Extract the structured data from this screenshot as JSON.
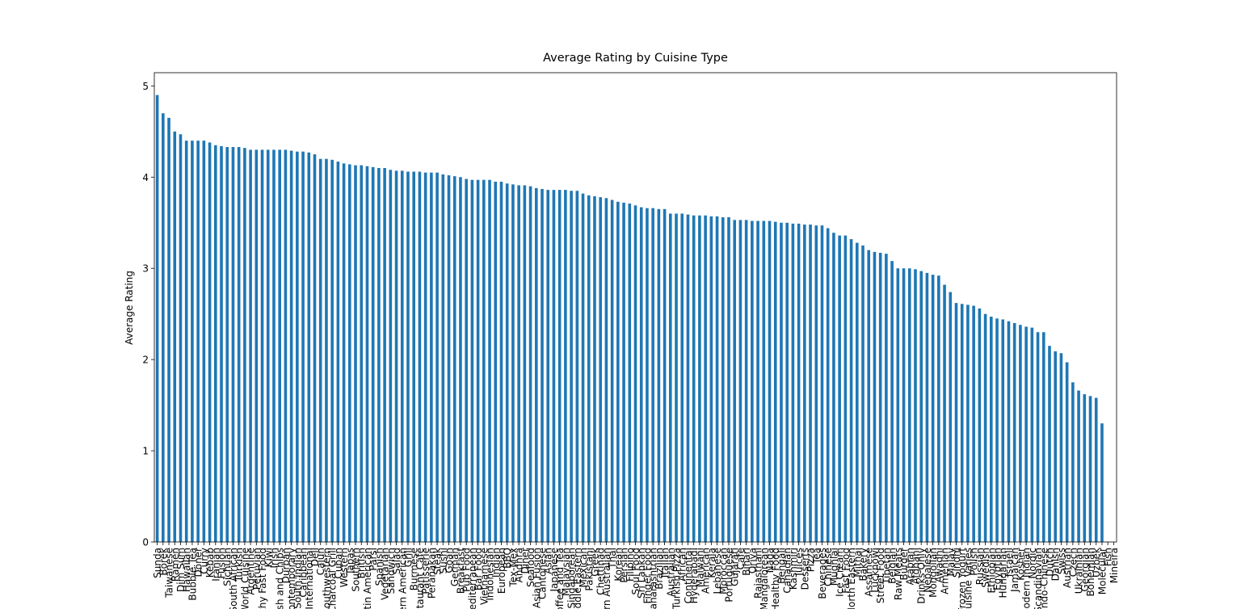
{
  "chart_data": {
    "type": "bar",
    "title": "Average Rating by Cuisine Type",
    "ylabel": "Average Rating",
    "color": "#1f77b4",
    "categories": [
      "Sunda",
      "Börek",
      "Taiwanese",
      "Ramen",
      "Dim Sum",
      "Hawaiian",
      "Bubble Tea",
      "Döner",
      "Curry",
      "Kebab",
      "Iranian",
      "Fusion",
      "Sichuan",
      "South African",
      "Turkish",
      "World Cuisine",
      "Argentine",
      "Peruvian",
      "Healthy Fast Food",
      "Kiwi",
      "Irish",
      "Fish and Chips",
      "Durban",
      "Contemporary",
      "South Indian",
      "Caribbean",
      "International",
      "Deli",
      "Cajun",
      "Southwestern",
      "Charcoal Grill",
      "Cuban",
      "Western",
      "Tapas",
      "Southern",
      "British",
      "Latin American",
      "Parsi",
      "Spanish",
      "Vegetarian",
      "Sandwich",
      "Salad",
      "Modern American",
      "Grill",
      "Burmese",
      "Restaurant Cafe",
      "Patisserie",
      "Peranakan",
      "Steak",
      "Sushi",
      "Goan",
      "German",
      "Breakfast",
      "Pub Food",
      "Mediterranean",
      "Bar Food",
      "Vietnamese",
      "Indonesian",
      "Indian",
      "European",
      "BBQ",
      "Tex-Mex",
      "Andhra",
      "Diner",
      "Seafood",
      "Asian Fusion",
      "Cantonese",
      "Asian",
      "Japanese",
      "Coffee and Tea",
      "Malaysian",
      "Singaporean",
      "Middle Eastern",
      "Mexican",
      "Pakistani",
      "Greek",
      "Chettinad",
      "Modern Australian",
      "Thai",
      "Korean",
      "Persian",
      "Filipino",
      "Soul Food",
      "Sri Lankan",
      "Finger Food",
      "Maharashtrian",
      "Brazilian",
      "Italian",
      "Australian",
      "Turkish Pizza",
      "African",
      "Continental",
      "Hyderabadi",
      "Malwani",
      "American",
      "Kerala",
      "Lebanese",
      "Moroccan",
      "Portuguese",
      "Gujarati",
      "Cafe",
      "Bihari",
      "Oriya",
      "Rajasthani",
      "Mangalorean",
      "Naga",
      "Healthy Food",
      "Bengali",
      "Canadian",
      "Kashmiri",
      "Juices",
      "Desserts",
      "Pizza",
      "Tea",
      "Beverages",
      "Chinese",
      "Mughlai",
      "Ice Cream",
      "Fast Food",
      "North Eastern",
      "Mithai",
      "Bakery",
      "Assamese",
      "Lucknowi",
      "Street Food",
      "Tibetan",
      "Belgian",
      "Raw Meats",
      "Burger",
      "Arabian",
      "Afghani",
      "Drinks Only",
      "Nepalese",
      "Mongolian",
      "Awadhi",
      "Armenian",
      "Malay",
      "Sindhi",
      "Frozen Yogurt",
      "Cuisine Varies",
      "Polish",
      "Russian",
      "Swedish",
      "Ethiopian",
      "Egyptian",
      "Hungarian",
      "Israeli",
      "Jamaican",
      "Kosher",
      "Modern Indian",
      "Nordic",
      "Scandinavian",
      "Indo-Chinese",
      "Dutch",
      "Danish",
      "Swiss",
      "Austrian",
      "Czech",
      "Ukrainian",
      "Georgian",
      "Bohemian",
      "Uzbek",
      "Molecular",
      "Fish",
      "Mineira"
    ],
    "values": [
      4.9,
      4.7,
      4.65,
      4.5,
      4.47,
      4.4,
      4.4,
      4.4,
      4.4,
      4.38,
      4.35,
      4.34,
      4.33,
      4.33,
      4.33,
      4.32,
      4.3,
      4.3,
      4.3,
      4.3,
      4.3,
      4.3,
      4.3,
      4.29,
      4.28,
      4.28,
      4.27,
      4.25,
      4.2,
      4.2,
      4.19,
      4.17,
      4.15,
      4.14,
      4.13,
      4.13,
      4.12,
      4.11,
      4.1,
      4.1,
      4.08,
      4.07,
      4.07,
      4.06,
      4.06,
      4.06,
      4.05,
      4.05,
      4.05,
      4.03,
      4.02,
      4.01,
      4.0,
      3.98,
      3.97,
      3.97,
      3.97,
      3.97,
      3.95,
      3.95,
      3.93,
      3.92,
      3.91,
      3.91,
      3.9,
      3.88,
      3.87,
      3.86,
      3.86,
      3.86,
      3.86,
      3.85,
      3.85,
      3.82,
      3.8,
      3.79,
      3.78,
      3.77,
      3.75,
      3.73,
      3.72,
      3.71,
      3.69,
      3.67,
      3.66,
      3.66,
      3.65,
      3.65,
      3.6,
      3.6,
      3.6,
      3.59,
      3.58,
      3.58,
      3.58,
      3.57,
      3.57,
      3.56,
      3.56,
      3.53,
      3.53,
      3.53,
      3.52,
      3.52,
      3.52,
      3.52,
      3.51,
      3.5,
      3.5,
      3.49,
      3.49,
      3.48,
      3.48,
      3.47,
      3.47,
      3.44,
      3.39,
      3.36,
      3.36,
      3.32,
      3.28,
      3.25,
      3.2,
      3.18,
      3.17,
      3.16,
      3.08,
      3.0,
      3.0,
      3.0,
      2.99,
      2.97,
      2.95,
      2.93,
      2.92,
      2.82,
      2.74,
      2.62,
      2.61,
      2.6,
      2.59,
      2.56,
      2.5,
      2.47,
      2.45,
      2.44,
      2.42,
      2.4,
      2.38,
      2.36,
      2.35,
      2.3,
      2.3,
      2.15,
      2.09,
      2.07,
      1.97,
      1.75,
      1.66,
      1.62,
      1.6,
      1.58,
      1.3,
      null,
      null
    ],
    "ylim": [
      0,
      5.145
    ],
    "yticks": [
      0,
      1,
      2,
      3,
      4,
      5
    ],
    "grid": false
  }
}
